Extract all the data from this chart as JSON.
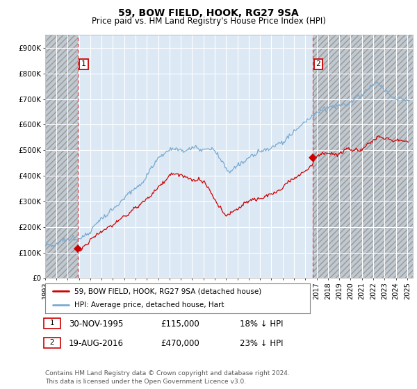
{
  "title": "59, BOW FIELD, HOOK, RG27 9SA",
  "subtitle": "Price paid vs. HM Land Registry's House Price Index (HPI)",
  "xlim_left": 1993.0,
  "xlim_right": 2025.5,
  "ylim_bottom": 0,
  "ylim_top": 950000,
  "yticks": [
    0,
    100000,
    200000,
    300000,
    400000,
    500000,
    600000,
    700000,
    800000,
    900000
  ],
  "ytick_labels": [
    "£0",
    "£100K",
    "£200K",
    "£300K",
    "£400K",
    "£500K",
    "£600K",
    "£700K",
    "£800K",
    "£900K"
  ],
  "xticks": [
    1993,
    1994,
    1995,
    1996,
    1997,
    1998,
    1999,
    2000,
    2001,
    2002,
    2003,
    2004,
    2005,
    2006,
    2007,
    2008,
    2009,
    2010,
    2011,
    2012,
    2013,
    2014,
    2015,
    2016,
    2017,
    2018,
    2019,
    2020,
    2021,
    2022,
    2023,
    2024,
    2025
  ],
  "sale1_x": 1995.917,
  "sale1_y": 115000,
  "sale1_label": "1",
  "sale2_x": 2016.635,
  "sale2_y": 470000,
  "sale2_label": "2",
  "property_color": "#cc0000",
  "hpi_color": "#7aaad0",
  "vline_color": "#dd4444",
  "legend_line1": "59, BOW FIELD, HOOK, RG27 9SA (detached house)",
  "legend_line2": "HPI: Average price, detached house, Hart",
  "table_row1": [
    "1",
    "30-NOV-1995",
    "£115,000",
    "18% ↓ HPI"
  ],
  "table_row2": [
    "2",
    "19-AUG-2016",
    "£470,000",
    "23% ↓ HPI"
  ],
  "footer": "Contains HM Land Registry data © Crown copyright and database right 2024.\nThis data is licensed under the Open Government Licence v3.0.",
  "background_color": "#ffffff",
  "plot_bg_color": "#dce9f5",
  "hatch_bg_color": "#c8c8c8"
}
